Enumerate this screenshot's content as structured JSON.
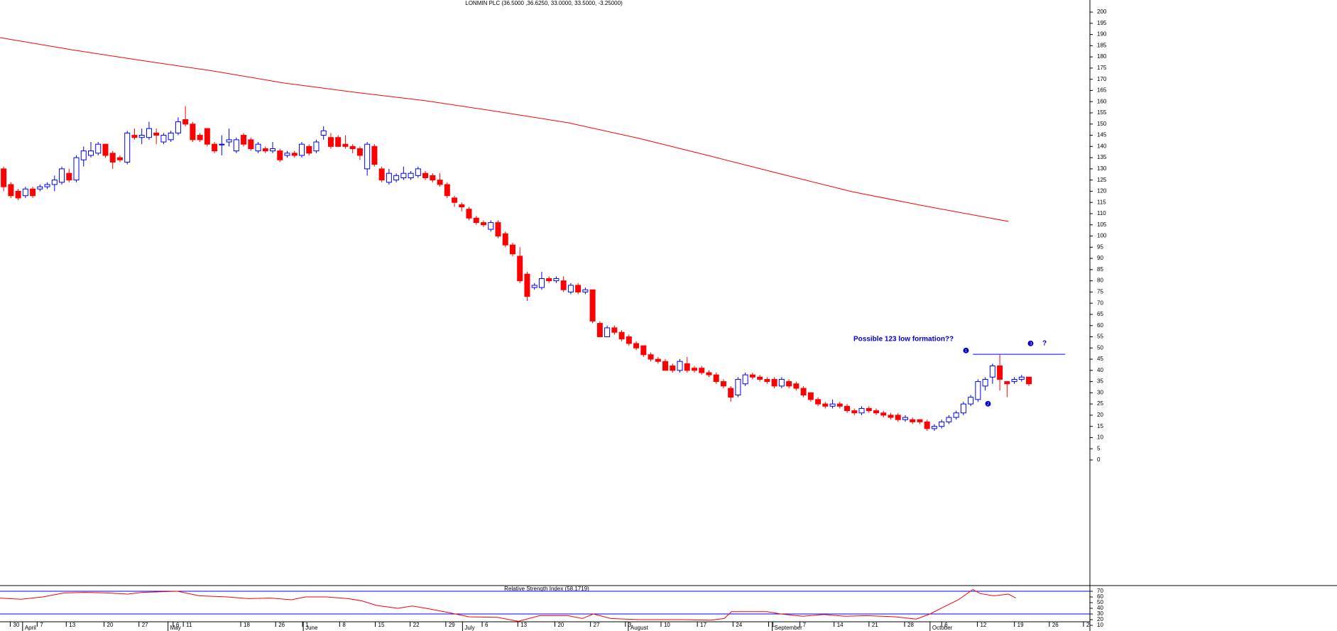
{
  "chart_data": {
    "type": "candlestick",
    "title": "LONMIN PLC (36.5000 ,36.6250, 33.0000, 33.5000, -3.25000)",
    "up_color": "#0000ff",
    "down_color": "#ff0000",
    "xlim": [
      -0.5,
      149.1
    ],
    "ylim": [
      -56.1,
      205.4
    ],
    "yticks": [
      0,
      5,
      10,
      15,
      20,
      25,
      30,
      35,
      40,
      45,
      50,
      55,
      60,
      65,
      70,
      75,
      80,
      85,
      90,
      95,
      100,
      105,
      110,
      115,
      120,
      125,
      130,
      135,
      140,
      145,
      150,
      155,
      160,
      165,
      170,
      175,
      180,
      185,
      190,
      195,
      200
    ],
    "xticks": [
      {
        "value": 1.3,
        "label": "30"
      },
      {
        "value": 5,
        "label": "7"
      },
      {
        "value": 9,
        "label": "13"
      },
      {
        "value": 14.2,
        "label": "20"
      },
      {
        "value": 19,
        "label": "27"
      },
      {
        "value": 23.7,
        "label": "6"
      },
      {
        "value": 25.1,
        "label": "11"
      },
      {
        "value": 33,
        "label": "18"
      },
      {
        "value": 37.8,
        "label": "26"
      },
      {
        "value": 41.5,
        "label": "1"
      },
      {
        "value": 46.6,
        "label": "8"
      },
      {
        "value": 51.5,
        "label": "15"
      },
      {
        "value": 56.3,
        "label": "22"
      },
      {
        "value": 61.2,
        "label": "29"
      },
      {
        "value": 66.2,
        "label": "6"
      },
      {
        "value": 71.1,
        "label": "13"
      },
      {
        "value": 76.2,
        "label": "20"
      },
      {
        "value": 81.1,
        "label": "27"
      },
      {
        "value": 85.9,
        "label": "3"
      },
      {
        "value": 90.8,
        "label": "10"
      },
      {
        "value": 95.8,
        "label": "17"
      },
      {
        "value": 100.7,
        "label": "24"
      },
      {
        "value": 105.6,
        "label": "1"
      },
      {
        "value": 109.9,
        "label": "7"
      },
      {
        "value": 114.6,
        "label": "14"
      },
      {
        "value": 119.4,
        "label": "21"
      },
      {
        "value": 124.3,
        "label": "28"
      },
      {
        "value": 129.4,
        "label": "6"
      },
      {
        "value": 134.3,
        "label": "12"
      },
      {
        "value": 139.4,
        "label": "19"
      },
      {
        "value": 144.2,
        "label": "26"
      },
      {
        "value": 148.9,
        "label": "2"
      }
    ],
    "months": [
      {
        "value": 2.9,
        "label": "April"
      },
      {
        "value": 22.9,
        "label": "May"
      },
      {
        "value": 41.5,
        "label": "June"
      },
      {
        "value": 63.4,
        "label": "July"
      },
      {
        "value": 86.2,
        "label": "August"
      },
      {
        "value": 106,
        "label": "September"
      },
      {
        "value": 127.7,
        "label": "October"
      }
    ],
    "candles": [
      [
        130,
        131,
        120,
        122
      ],
      [
        123,
        124,
        117,
        118
      ],
      [
        120,
        121,
        116,
        117
      ],
      [
        118,
        122,
        117,
        121
      ],
      [
        121,
        122,
        117,
        118
      ],
      [
        121,
        123,
        120,
        122
      ],
      [
        122,
        124,
        121,
        123
      ],
      [
        123,
        127,
        120,
        125
      ],
      [
        124,
        131,
        123,
        130
      ],
      [
        128,
        130,
        124,
        125
      ],
      [
        125,
        136,
        124,
        135
      ],
      [
        134,
        140,
        131,
        138
      ],
      [
        136,
        142,
        135,
        138
      ],
      [
        137,
        142,
        136,
        141
      ],
      [
        141,
        141,
        135,
        136
      ],
      [
        137,
        138,
        130,
        133
      ],
      [
        135,
        136,
        133,
        134
      ],
      [
        133,
        147,
        132,
        146
      ],
      [
        145,
        148,
        143,
        144
      ],
      [
        144,
        148,
        141,
        145
      ],
      [
        144,
        151,
        143,
        148
      ],
      [
        146,
        148,
        141,
        145
      ],
      [
        142,
        146,
        141,
        145
      ],
      [
        143,
        147,
        142,
        146
      ],
      [
        146,
        153,
        145,
        151
      ],
      [
        152,
        158,
        149,
        150
      ],
      [
        150,
        151,
        142,
        143
      ],
      [
        145,
        146,
        142,
        143
      ],
      [
        148,
        148,
        140,
        141
      ],
      [
        141,
        142,
        137,
        138
      ],
      [
        141,
        145,
        136,
        141
      ],
      [
        142,
        148,
        140,
        143
      ],
      [
        138,
        144,
        137,
        143
      ],
      [
        145,
        146,
        140,
        141
      ],
      [
        143,
        144,
        138,
        139
      ],
      [
        138,
        142,
        137,
        141
      ],
      [
        139,
        140,
        137,
        138
      ],
      [
        138,
        142,
        137,
        139
      ],
      [
        138,
        139,
        133,
        134
      ],
      [
        136,
        138,
        135,
        137
      ],
      [
        137,
        138,
        135,
        136
      ],
      [
        136,
        142,
        135,
        141
      ],
      [
        140,
        141,
        136,
        137
      ],
      [
        138,
        143,
        137,
        142
      ],
      [
        145,
        149,
        143,
        147
      ],
      [
        144,
        146,
        139,
        140
      ],
      [
        144,
        145,
        140,
        140
      ],
      [
        141,
        145,
        139,
        140
      ],
      [
        140,
        141,
        137,
        139
      ],
      [
        139,
        140,
        134,
        136
      ],
      [
        130,
        142,
        127,
        141
      ],
      [
        140,
        141,
        131,
        132
      ],
      [
        130,
        131,
        124,
        125
      ],
      [
        124,
        130,
        123,
        128
      ],
      [
        125,
        128,
        124,
        127
      ],
      [
        126,
        131,
        125,
        128
      ],
      [
        126,
        129,
        125,
        128
      ],
      [
        127,
        131,
        126,
        130
      ],
      [
        128,
        129,
        125,
        126
      ],
      [
        127,
        128,
        124,
        125
      ],
      [
        125,
        128,
        122,
        123
      ],
      [
        123,
        124,
        117,
        118
      ],
      [
        117,
        118,
        113,
        115
      ],
      [
        114,
        115,
        111,
        113
      ],
      [
        112,
        113,
        107,
        108
      ],
      [
        108,
        109,
        105,
        106
      ],
      [
        106,
        107,
        104,
        105
      ],
      [
        103,
        107,
        102,
        106
      ],
      [
        106,
        107,
        99,
        100
      ],
      [
        101,
        102,
        95,
        96
      ],
      [
        96,
        97,
        91,
        92
      ],
      [
        91,
        95,
        79,
        80
      ],
      [
        83,
        84,
        71,
        73
      ],
      [
        77,
        79,
        76,
        78
      ],
      [
        77,
        84,
        76,
        81
      ],
      [
        81,
        82,
        79,
        80
      ],
      [
        80,
        82,
        79,
        81
      ],
      [
        80,
        82,
        75,
        76
      ],
      [
        75,
        79,
        74,
        78
      ],
      [
        78,
        79,
        74,
        75
      ],
      [
        75,
        77,
        74,
        76
      ],
      [
        76,
        76,
        61,
        62
      ],
      [
        61,
        62,
        55,
        55
      ],
      [
        55,
        60,
        55,
        59
      ],
      [
        59,
        60,
        56,
        57
      ],
      [
        57,
        58,
        53,
        54
      ],
      [
        55,
        56,
        51,
        52
      ],
      [
        52,
        53,
        49,
        50
      ],
      [
        51,
        51,
        46,
        47
      ],
      [
        47,
        48,
        44,
        45
      ],
      [
        45,
        46,
        43,
        44
      ],
      [
        44,
        45,
        40,
        40
      ],
      [
        42,
        43,
        39,
        40
      ],
      [
        40,
        45,
        39,
        44
      ],
      [
        43,
        46,
        39,
        40
      ],
      [
        41,
        42,
        39,
        40
      ],
      [
        41,
        42,
        38,
        39
      ],
      [
        39,
        40,
        37,
        38
      ],
      [
        38,
        39,
        34,
        35
      ],
      [
        35,
        36,
        32,
        33
      ],
      [
        32,
        33,
        26,
        28
      ],
      [
        29,
        37,
        28,
        36
      ],
      [
        34,
        39,
        33,
        38
      ],
      [
        38,
        39,
        36,
        37
      ],
      [
        37,
        38,
        35,
        36
      ],
      [
        36,
        37,
        34,
        35
      ],
      [
        36,
        37,
        32,
        33
      ],
      [
        33,
        37,
        32,
        36
      ],
      [
        35,
        36,
        32,
        33
      ],
      [
        34,
        35,
        31,
        32
      ],
      [
        32,
        33,
        28,
        29
      ],
      [
        30,
        30,
        26,
        27
      ],
      [
        27,
        28,
        24,
        25
      ],
      [
        25,
        26,
        23,
        24
      ],
      [
        24,
        27,
        23,
        25
      ],
      [
        25,
        26,
        23,
        24
      ],
      [
        24,
        25,
        21,
        22
      ],
      [
        22,
        23,
        20,
        21
      ],
      [
        21,
        24,
        20,
        23
      ],
      [
        23,
        24,
        21,
        22
      ],
      [
        22,
        23,
        20,
        21
      ],
      [
        21,
        22,
        19,
        20
      ],
      [
        20,
        21,
        18,
        19
      ],
      [
        20,
        21,
        17,
        18
      ],
      [
        18,
        20,
        17,
        19
      ],
      [
        18,
        19,
        16,
        17
      ],
      [
        18,
        18,
        16,
        17
      ],
      [
        17,
        18,
        13,
        14
      ],
      [
        14,
        16,
        13,
        15
      ],
      [
        15,
        18,
        14,
        17
      ],
      [
        17,
        20,
        16,
        19
      ],
      [
        19,
        22,
        18,
        21
      ],
      [
        21,
        26,
        20,
        25
      ],
      [
        25,
        29,
        24,
        28
      ],
      [
        27,
        36,
        26,
        35
      ],
      [
        33,
        37,
        31,
        36
      ],
      [
        37,
        43,
        34,
        42
      ],
      [
        42,
        47,
        31,
        36
      ],
      [
        35,
        35,
        28,
        34
      ],
      [
        35,
        37,
        34,
        36
      ],
      [
        36,
        38,
        35,
        37
      ],
      [
        37,
        37,
        33,
        34
      ]
    ],
    "ma": {
      "color": "#ff0000",
      "x": [
        -0.5,
        9.3,
        19,
        28.8,
        38.6,
        48.3,
        58.1,
        67.9,
        77.6,
        87.4,
        97.2,
        106.9,
        116.7,
        126.5,
        138.2
      ],
      "values": [
        188.6,
        183.2,
        178.4,
        173.7,
        168.3,
        164.2,
        160.4,
        155.6,
        150.6,
        143.6,
        135.7,
        127.7,
        119.8,
        113.5,
        106.5
      ]
    },
    "annotation": "Possible 123 low formation??",
    "markers": [
      "❶",
      "❷",
      "❸",
      "?"
    ],
    "resistance": {
      "color": "#0000ff",
      "x": [
        133.3,
        146
      ],
      "value": 47.2
    },
    "rsi": {
      "title": "Relative Strength Index (58.1719)",
      "color": "#ff0000",
      "level_color": "#0000ff",
      "ylim": [
        0,
        78.75
      ],
      "yticks": [
        10,
        20,
        30,
        40,
        50,
        60,
        70
      ],
      "levels": [
        70,
        30
      ],
      "x": [
        -0.5,
        2.4,
        5.4,
        8.3,
        11.2,
        14.2,
        17.1,
        19,
        23.9,
        26.9,
        30.8,
        33.7,
        36.6,
        39.6,
        41.5,
        44.4,
        47.4,
        49.3,
        51.3,
        54.2,
        56.2,
        58.1,
        61,
        64,
        67.9,
        70.8,
        73.7,
        77.6,
        79.6,
        81.1,
        83.5,
        87.4,
        93.3,
        97.2,
        99.1,
        100.1,
        105,
        106.9,
        109.9,
        112.8,
        115.7,
        118.7,
        122.6,
        125.5,
        127.4,
        129.4,
        131.3,
        133.3,
        134.3,
        136.2,
        138.2,
        139.2
      ],
      "values": [
        58,
        56,
        60,
        67,
        68,
        67,
        65,
        68,
        70,
        62,
        60,
        57,
        58,
        55,
        60,
        60,
        57,
        53,
        45,
        40,
        44,
        40,
        33,
        25,
        24,
        17,
        27,
        27,
        22,
        30,
        22,
        20,
        20,
        19,
        22,
        34,
        34,
        30,
        26,
        29,
        26,
        27,
        25,
        21,
        30,
        43,
        55,
        73,
        66,
        62,
        65,
        58
      ]
    }
  }
}
